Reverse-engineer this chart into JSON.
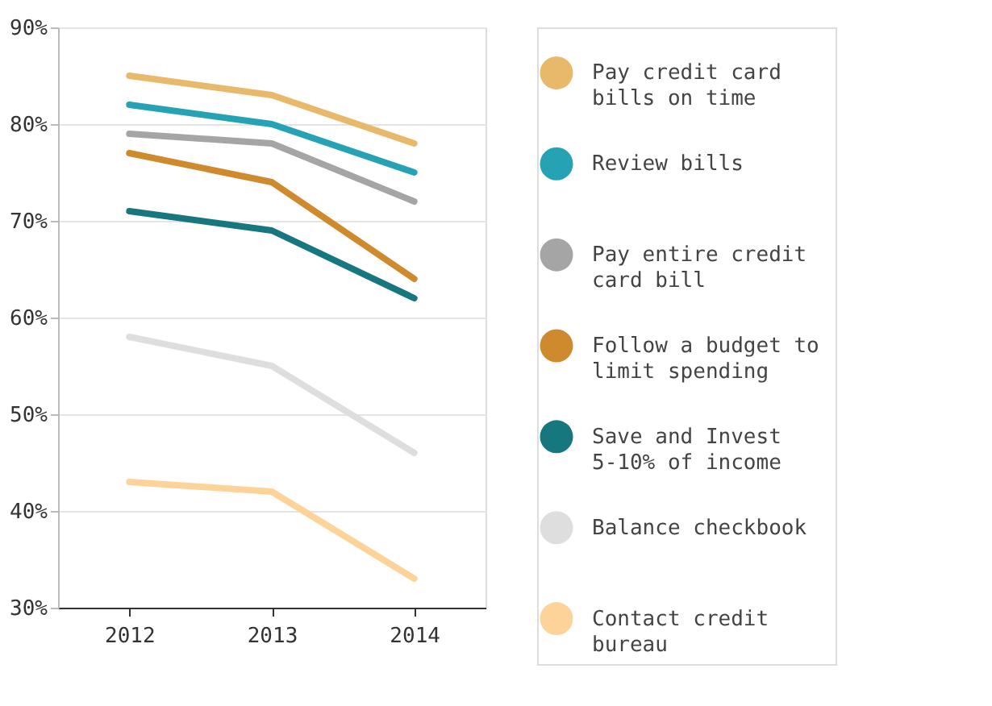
{
  "chart_data": {
    "type": "line",
    "categories": [
      "2012",
      "2013",
      "2014"
    ],
    "series": [
      {
        "name": "Pay credit card bills on time",
        "color": "#e8b96a",
        "values": [
          85,
          83,
          78
        ]
      },
      {
        "name": "Review bills",
        "color": "#25a3b5",
        "values": [
          82,
          80,
          75
        ]
      },
      {
        "name": "Pay entire credit card bill",
        "color": "#a5a5a5",
        "values": [
          79,
          78,
          72
        ]
      },
      {
        "name": "Follow a budget to limit spending",
        "color": "#cf8a2e",
        "values": [
          77,
          74,
          64
        ]
      },
      {
        "name": "Save and Invest 5-10% of income",
        "color": "#17777e",
        "values": [
          71,
          69,
          62
        ]
      },
      {
        "name": "Balance checkbook",
        "color": "#dedede",
        "values": [
          58,
          55,
          46
        ]
      },
      {
        "name": "Contact credit bureau",
        "color": "#fdd39a",
        "values": [
          43,
          42,
          33
        ]
      }
    ],
    "ylim": [
      30,
      90
    ],
    "yticks": [
      {
        "value": 30,
        "label": "30%"
      },
      {
        "value": 40,
        "label": "40%"
      },
      {
        "value": 50,
        "label": "50%"
      },
      {
        "value": 60,
        "label": "60%"
      },
      {
        "value": 70,
        "label": "70%"
      },
      {
        "value": 80,
        "label": "80%"
      },
      {
        "value": 90,
        "label": "90%"
      }
    ],
    "grid": "y",
    "legend": "right",
    "marker": "none",
    "line_style": "solid"
  }
}
